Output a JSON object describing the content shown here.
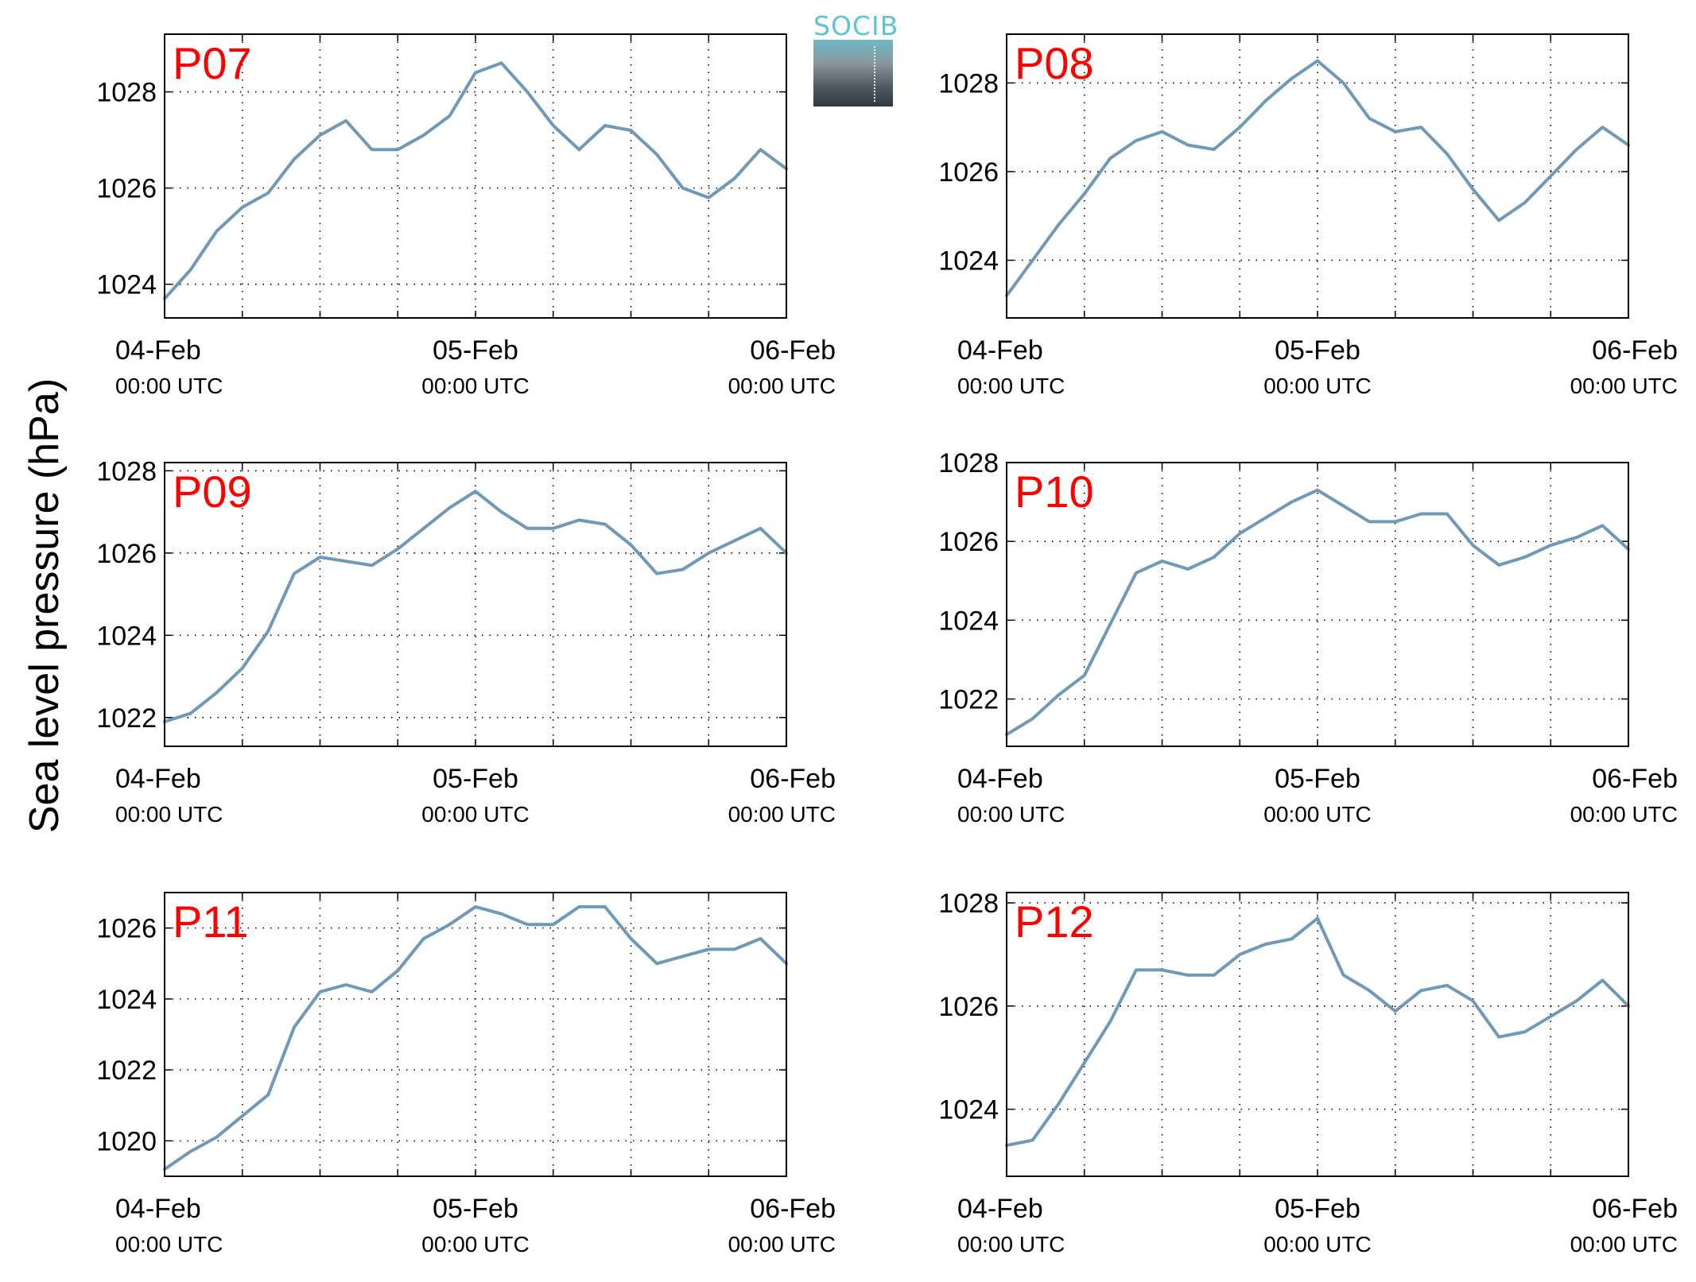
{
  "figure": {
    "ylabel": "Sea level pressure (hPa)",
    "logo_text": "SOCIB",
    "line_color": "#6f99b9",
    "station_label_color": "#ff0000"
  },
  "chart_data": [
    {
      "type": "line",
      "station": "P07",
      "x_range": [
        "04-Feb 00:00 UTC",
        "06-Feb 00:00 UTC"
      ],
      "x_ticks": [
        {
          "date": "04-Feb",
          "time": "00:00 UTC"
        },
        {
          "date": "05-Feb",
          "time": "00:00 UTC"
        },
        {
          "date": "06-Feb",
          "time": "00:00 UTC"
        }
      ],
      "yticks": [
        1024,
        1026,
        1028
      ],
      "ylim": [
        1023.3,
        1029.2
      ],
      "grid": true,
      "x": [
        "04-Feb 00:00",
        "04-Feb 02:00",
        "04-Feb 04:00",
        "04-Feb 06:00",
        "04-Feb 08:00",
        "04-Feb 10:00",
        "04-Feb 12:00",
        "04-Feb 14:00",
        "04-Feb 16:00",
        "04-Feb 18:00",
        "04-Feb 20:00",
        "04-Feb 22:00",
        "05-Feb 00:00",
        "05-Feb 02:00",
        "05-Feb 04:00",
        "05-Feb 06:00",
        "05-Feb 08:00",
        "05-Feb 10:00",
        "05-Feb 12:00",
        "05-Feb 14:00",
        "05-Feb 16:00",
        "05-Feb 18:00",
        "05-Feb 20:00",
        "05-Feb 22:00",
        "06-Feb 00:00"
      ],
      "y": [
        1023.7,
        1024.3,
        1025.1,
        1025.6,
        1025.9,
        1026.6,
        1027.1,
        1027.4,
        1026.8,
        1026.8,
        1027.1,
        1027.5,
        1028.4,
        1028.6,
        1028.0,
        1027.3,
        1026.8,
        1027.3,
        1027.2,
        1026.7,
        1026.0,
        1025.8,
        1026.2,
        1026.8,
        1026.4
      ]
    },
    {
      "type": "line",
      "station": "P08",
      "x_range": [
        "04-Feb 00:00 UTC",
        "06-Feb 00:00 UTC"
      ],
      "x_ticks": [
        {
          "date": "04-Feb",
          "time": "00:00 UTC"
        },
        {
          "date": "05-Feb",
          "time": "00:00 UTC"
        },
        {
          "date": "06-Feb",
          "time": "00:00 UTC"
        }
      ],
      "yticks": [
        1024,
        1026,
        1028
      ],
      "ylim": [
        1022.7,
        1029.1
      ],
      "grid": true,
      "x": [
        "04-Feb 00:00",
        "04-Feb 02:00",
        "04-Feb 04:00",
        "04-Feb 06:00",
        "04-Feb 08:00",
        "04-Feb 10:00",
        "04-Feb 12:00",
        "04-Feb 14:00",
        "04-Feb 16:00",
        "04-Feb 18:00",
        "04-Feb 20:00",
        "04-Feb 22:00",
        "05-Feb 00:00",
        "05-Feb 02:00",
        "05-Feb 04:00",
        "05-Feb 06:00",
        "05-Feb 08:00",
        "05-Feb 10:00",
        "05-Feb 12:00",
        "05-Feb 14:00",
        "05-Feb 16:00",
        "05-Feb 18:00",
        "05-Feb 20:00",
        "05-Feb 22:00",
        "06-Feb 00:00"
      ],
      "y": [
        1023.2,
        1024.0,
        1024.8,
        1025.5,
        1026.3,
        1026.7,
        1026.9,
        1026.6,
        1026.5,
        1027.0,
        1027.6,
        1028.1,
        1028.5,
        1028.0,
        1027.2,
        1026.9,
        1027.0,
        1026.4,
        1025.6,
        1024.9,
        1025.3,
        1025.9,
        1026.5,
        1027.0,
        1026.6
      ]
    },
    {
      "type": "line",
      "station": "P09",
      "x_range": [
        "04-Feb 00:00 UTC",
        "06-Feb 00:00 UTC"
      ],
      "x_ticks": [
        {
          "date": "04-Feb",
          "time": "00:00 UTC"
        },
        {
          "date": "05-Feb",
          "time": "00:00 UTC"
        },
        {
          "date": "06-Feb",
          "time": "00:00 UTC"
        }
      ],
      "yticks": [
        1022,
        1024,
        1026,
        1028
      ],
      "ylim": [
        1021.3,
        1028.2
      ],
      "grid": true,
      "x": [
        "04-Feb 00:00",
        "04-Feb 02:00",
        "04-Feb 04:00",
        "04-Feb 06:00",
        "04-Feb 08:00",
        "04-Feb 10:00",
        "04-Feb 12:00",
        "04-Feb 14:00",
        "04-Feb 16:00",
        "04-Feb 18:00",
        "04-Feb 20:00",
        "04-Feb 22:00",
        "05-Feb 00:00",
        "05-Feb 02:00",
        "05-Feb 04:00",
        "05-Feb 06:00",
        "05-Feb 08:00",
        "05-Feb 10:00",
        "05-Feb 12:00",
        "05-Feb 14:00",
        "05-Feb 16:00",
        "05-Feb 18:00",
        "05-Feb 20:00",
        "05-Feb 22:00",
        "06-Feb 00:00"
      ],
      "y": [
        1021.9,
        1022.1,
        1022.6,
        1023.2,
        1024.1,
        1025.5,
        1025.9,
        1025.8,
        1025.7,
        1026.1,
        1026.6,
        1027.1,
        1027.5,
        1027.0,
        1026.6,
        1026.6,
        1026.8,
        1026.7,
        1026.2,
        1025.5,
        1025.6,
        1026.0,
        1026.3,
        1026.6,
        1026.0
      ]
    },
    {
      "type": "line",
      "station": "P10",
      "x_range": [
        "04-Feb 00:00 UTC",
        "06-Feb 00:00 UTC"
      ],
      "x_ticks": [
        {
          "date": "04-Feb",
          "time": "00:00 UTC"
        },
        {
          "date": "05-Feb",
          "time": "00:00 UTC"
        },
        {
          "date": "06-Feb",
          "time": "00:00 UTC"
        }
      ],
      "yticks": [
        1022,
        1024,
        1026,
        1028
      ],
      "ylim": [
        1020.8,
        1028.0
      ],
      "grid": true,
      "x": [
        "04-Feb 00:00",
        "04-Feb 02:00",
        "04-Feb 04:00",
        "04-Feb 06:00",
        "04-Feb 08:00",
        "04-Feb 10:00",
        "04-Feb 12:00",
        "04-Feb 14:00",
        "04-Feb 16:00",
        "04-Feb 18:00",
        "04-Feb 20:00",
        "04-Feb 22:00",
        "05-Feb 00:00",
        "05-Feb 02:00",
        "05-Feb 04:00",
        "05-Feb 06:00",
        "05-Feb 08:00",
        "05-Feb 10:00",
        "05-Feb 12:00",
        "05-Feb 14:00",
        "05-Feb 16:00",
        "05-Feb 18:00",
        "05-Feb 20:00",
        "05-Feb 22:00",
        "06-Feb 00:00"
      ],
      "y": [
        1021.1,
        1021.5,
        1022.1,
        1022.6,
        1023.9,
        1025.2,
        1025.5,
        1025.3,
        1025.6,
        1026.2,
        1026.6,
        1027.0,
        1027.3,
        1026.9,
        1026.5,
        1026.5,
        1026.7,
        1026.7,
        1025.9,
        1025.4,
        1025.6,
        1025.9,
        1026.1,
        1026.4,
        1025.8
      ]
    },
    {
      "type": "line",
      "station": "P11",
      "x_range": [
        "04-Feb 00:00 UTC",
        "06-Feb 00:00 UTC"
      ],
      "x_ticks": [
        {
          "date": "04-Feb",
          "time": "00:00 UTC"
        },
        {
          "date": "05-Feb",
          "time": "00:00 UTC"
        },
        {
          "date": "06-Feb",
          "time": "00:00 UTC"
        }
      ],
      "yticks": [
        1020,
        1022,
        1024,
        1026
      ],
      "ylim": [
        1019.0,
        1027.0
      ],
      "grid": true,
      "x": [
        "04-Feb 00:00",
        "04-Feb 02:00",
        "04-Feb 04:00",
        "04-Feb 06:00",
        "04-Feb 08:00",
        "04-Feb 10:00",
        "04-Feb 12:00",
        "04-Feb 14:00",
        "04-Feb 16:00",
        "04-Feb 18:00",
        "04-Feb 20:00",
        "04-Feb 22:00",
        "05-Feb 00:00",
        "05-Feb 02:00",
        "05-Feb 04:00",
        "05-Feb 06:00",
        "05-Feb 08:00",
        "05-Feb 10:00",
        "05-Feb 12:00",
        "05-Feb 14:00",
        "05-Feb 16:00",
        "05-Feb 18:00",
        "05-Feb 20:00",
        "05-Feb 22:00",
        "06-Feb 00:00"
      ],
      "y": [
        1019.2,
        1019.7,
        1020.1,
        1020.7,
        1021.3,
        1023.2,
        1024.2,
        1024.4,
        1024.2,
        1024.8,
        1025.7,
        1026.1,
        1026.6,
        1026.4,
        1026.1,
        1026.1,
        1026.6,
        1026.6,
        1025.7,
        1025.0,
        1025.2,
        1025.4,
        1025.4,
        1025.7,
        1025.0
      ]
    },
    {
      "type": "line",
      "station": "P12",
      "x_range": [
        "04-Feb 00:00 UTC",
        "06-Feb 00:00 UTC"
      ],
      "x_ticks": [
        {
          "date": "04-Feb",
          "time": "00:00 UTC"
        },
        {
          "date": "05-Feb",
          "time": "00:00 UTC"
        },
        {
          "date": "06-Feb",
          "time": "00:00 UTC"
        }
      ],
      "yticks": [
        1024,
        1026,
        1028
      ],
      "ylim": [
        1022.7,
        1028.2
      ],
      "grid": true,
      "x": [
        "04-Feb 00:00",
        "04-Feb 02:00",
        "04-Feb 04:00",
        "04-Feb 06:00",
        "04-Feb 08:00",
        "04-Feb 10:00",
        "04-Feb 12:00",
        "04-Feb 14:00",
        "04-Feb 16:00",
        "04-Feb 18:00",
        "04-Feb 20:00",
        "04-Feb 22:00",
        "05-Feb 00:00",
        "05-Feb 02:00",
        "05-Feb 04:00",
        "05-Feb 06:00",
        "05-Feb 08:00",
        "05-Feb 10:00",
        "05-Feb 12:00",
        "05-Feb 14:00",
        "05-Feb 16:00",
        "05-Feb 18:00",
        "05-Feb 20:00",
        "05-Feb 22:00",
        "06-Feb 00:00"
      ],
      "y": [
        1023.3,
        1023.4,
        1024.1,
        1024.9,
        1025.7,
        1026.7,
        1026.7,
        1026.6,
        1026.6,
        1027.0,
        1027.2,
        1027.3,
        1027.7,
        1026.6,
        1026.3,
        1025.9,
        1026.3,
        1026.4,
        1026.1,
        1025.4,
        1025.5,
        1025.8,
        1026.1,
        1026.5,
        1026.0
      ]
    }
  ]
}
